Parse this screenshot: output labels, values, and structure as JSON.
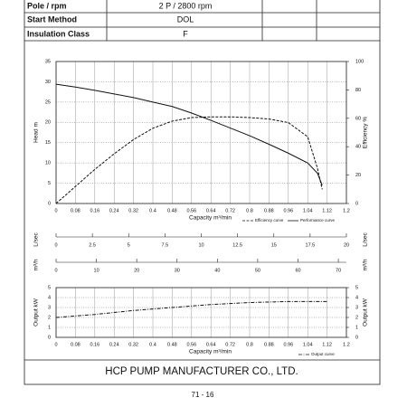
{
  "table": {
    "rows": [
      [
        "Pole / rpm",
        "2 P / 2800 rpm"
      ],
      [
        "Start Method",
        "DOL"
      ],
      [
        "Insulation Class",
        "F"
      ]
    ]
  },
  "chart_data": [
    {
      "type": "line",
      "xlabel": "Capacity m³/min",
      "ylabel": "Head m",
      "y2label": "Efficiency %",
      "xlim": [
        0,
        1.2
      ],
      "xticks": [
        0,
        0.08,
        0.16,
        0.24,
        0.32,
        0.4,
        0.48,
        0.56,
        0.64,
        0.72,
        0.8,
        0.88,
        0.96,
        1.04,
        1.12,
        1.2
      ],
      "ylim": [
        0,
        35
      ],
      "yticks": [
        0,
        5,
        10,
        15,
        20,
        25,
        30,
        35
      ],
      "y2lim": [
        0,
        100
      ],
      "y2ticks": [
        0,
        20,
        40,
        60,
        80,
        100
      ],
      "grid": true,
      "x": [
        0,
        0.08,
        0.16,
        0.24,
        0.32,
        0.4,
        0.48,
        0.56,
        0.64,
        0.72,
        0.8,
        0.88,
        0.96,
        1.04,
        1.08,
        1.1
      ],
      "series": [
        {
          "name": "Efficiency curve",
          "color": "#111111",
          "line_style": "dashed",
          "axis": "y2",
          "values": [
            0,
            12,
            24,
            35,
            45,
            53,
            58,
            60.5,
            61,
            61,
            60.5,
            59.5,
            57,
            47,
            25,
            10
          ]
        },
        {
          "name": "Performance curve",
          "color": "#111111",
          "line_style": "solid",
          "values": [
            29.4,
            28.7,
            27.9,
            27,
            26.1,
            25,
            23.9,
            22.3,
            20.5,
            18.6,
            16.7,
            14.6,
            12.4,
            10,
            7.5,
            4.5
          ]
        }
      ]
    },
    {
      "type": "line",
      "xlabel": "Capacity m³/min",
      "ylabel": "Output kW",
      "y2label": "Output kW",
      "xlim": [
        0,
        1.2
      ],
      "xticks": [
        0,
        0.08,
        0.16,
        0.24,
        0.32,
        0.4,
        0.48,
        0.56,
        0.64,
        0.72,
        0.8,
        0.88,
        0.96,
        1.04,
        1.12,
        1.2
      ],
      "ylim": [
        0,
        5
      ],
      "yticks": [
        0,
        1,
        2,
        3,
        4,
        5
      ],
      "y2lim": [
        0,
        5
      ],
      "y2ticks": [
        0,
        1,
        2,
        3,
        4,
        5
      ],
      "grid": true,
      "x": [
        0,
        0.16,
        0.32,
        0.48,
        0.64,
        0.8,
        0.96,
        1.12
      ],
      "series": [
        {
          "name": "Output curve",
          "color": "#111111",
          "line_style": "dashdot",
          "values": [
            2,
            2.3,
            2.7,
            3,
            3.3,
            3.5,
            3.6,
            3.6
          ]
        }
      ]
    }
  ],
  "scales": [
    {
      "label": "L/sec",
      "lim": [
        0,
        20
      ],
      "ticks": [
        0,
        2.5,
        5,
        7.5,
        10,
        12.5,
        15,
        17.5,
        20
      ]
    },
    {
      "label": "m³/h",
      "lim": [
        0,
        72
      ],
      "ticks": [
        0,
        10,
        20,
        30,
        40,
        50,
        60,
        70
      ]
    }
  ],
  "footer": {
    "company": "HCP PUMP MANUFACTURER CO., LTD.",
    "page": "71 - 16"
  }
}
